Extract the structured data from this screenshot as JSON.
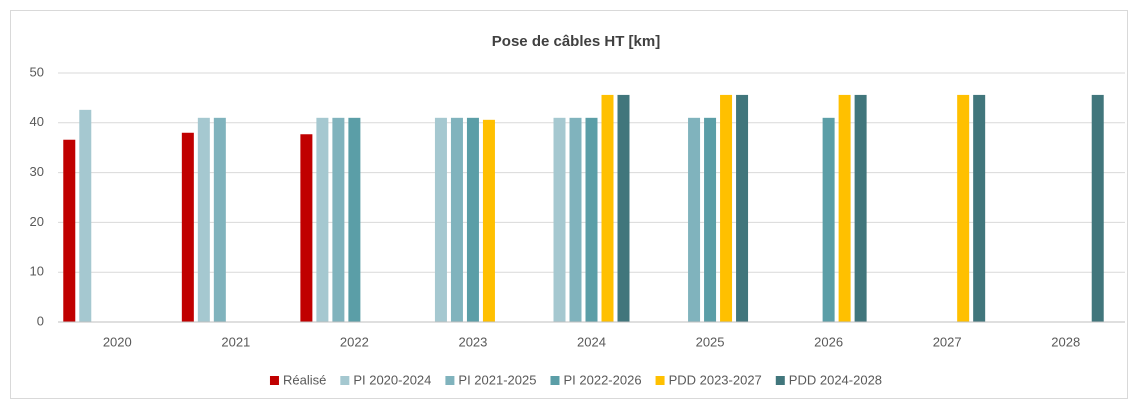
{
  "chart_data": {
    "type": "bar",
    "title": "Pose de câbles HT [km]",
    "categories": [
      "2020",
      "2021",
      "2022",
      "2023",
      "2024",
      "2025",
      "2026",
      "2027",
      "2028"
    ],
    "series": [
      {
        "name": "Réalisé",
        "color": "#c00000",
        "values": [
          36.6,
          38,
          37.7,
          null,
          null,
          null,
          null,
          null,
          null
        ]
      },
      {
        "name": "PI 2020-2024",
        "color": "#a5c8d0",
        "values": [
          42.6,
          41,
          41,
          41,
          41,
          null,
          null,
          null,
          null
        ]
      },
      {
        "name": "PI 2021-2025",
        "color": "#80b3bd",
        "values": [
          null,
          41,
          41,
          41,
          41,
          41,
          null,
          null,
          null
        ]
      },
      {
        "name": "PI 2022-2026",
        "color": "#5b9ea7",
        "values": [
          null,
          null,
          41,
          41,
          41,
          41,
          41,
          null,
          null
        ]
      },
      {
        "name": "PDD 2023-2027",
        "color": "#ffc000",
        "values": [
          null,
          null,
          null,
          40.6,
          45.6,
          45.6,
          45.6,
          45.6,
          null
        ]
      },
      {
        "name": "PDD 2024-2028",
        "color": "#41767c",
        "values": [
          null,
          null,
          null,
          null,
          45.6,
          45.6,
          45.6,
          45.6,
          45.6
        ]
      }
    ],
    "ylim": [
      0,
      50
    ],
    "yticks": [
      0,
      10,
      20,
      30,
      40,
      50
    ],
    "grid": true,
    "legend": "bottom"
  }
}
